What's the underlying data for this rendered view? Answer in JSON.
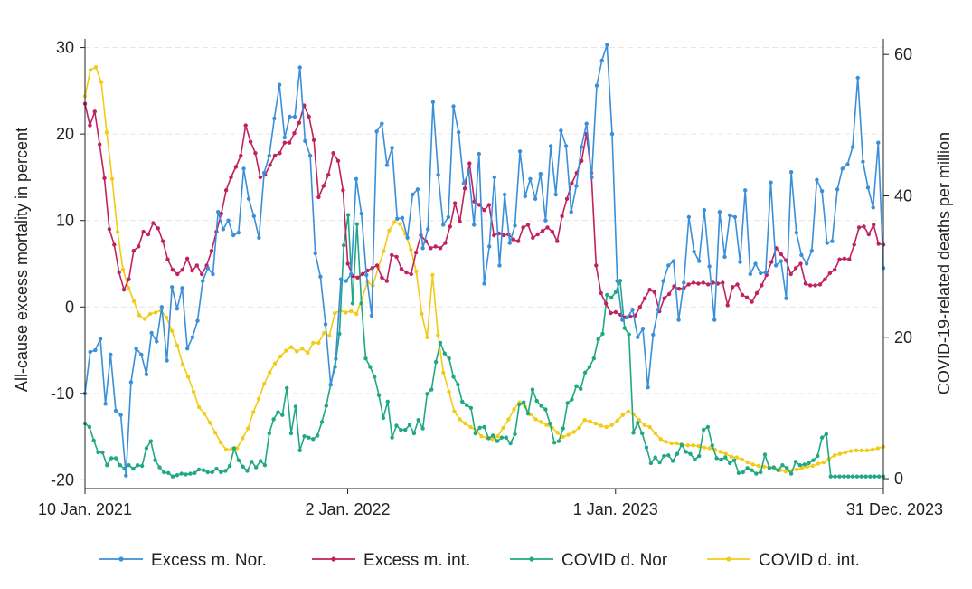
{
  "chart_data": {
    "type": "line",
    "title": "",
    "y_left_label": "All-cause excess mortality in percent",
    "y_right_label": "COVID-19-related deaths per million",
    "y_left_range": [
      -21,
      31
    ],
    "y_right_range": [
      -1.4,
      62.2
    ],
    "y_left_ticks": [
      30,
      20,
      10,
      0,
      -10,
      -20
    ],
    "y_right_ticks": [
      60,
      40,
      20,
      0
    ],
    "x_range": [
      0,
      155
    ],
    "x_ticks": [
      {
        "week": 0,
        "label": "10 Jan. 2021"
      },
      {
        "week": 51,
        "label": "2 Jan. 2022"
      },
      {
        "week": 103,
        "label": "1 Jan. 2023"
      },
      {
        "week": 155,
        "label": "31 Dec. 2023"
      }
    ],
    "grid": true,
    "legend_position": "bottom",
    "series": [
      {
        "name": "Excess m. Nor.",
        "axis": "left",
        "color": "#3a8fd9",
        "values": [
          -10,
          -5.2,
          -5,
          -3.7,
          -11.2,
          -5.5,
          -12,
          -12.5,
          -19.5,
          -8.7,
          -4.8,
          -5.5,
          -7.8,
          -3,
          -4,
          0,
          -6.2,
          2.3,
          -0.2,
          2.2,
          -4.8,
          -3.5,
          -1.6,
          3,
          4.5,
          3.8,
          11,
          9,
          10,
          8.3,
          8.6,
          16,
          12.5,
          10.5,
          8,
          15.5,
          17.5,
          21.8,
          25.7,
          19.6,
          22,
          22,
          27.7,
          19.2,
          17.5,
          6.2,
          3.5,
          -2,
          -9,
          -6,
          3.2,
          3,
          3.8,
          14.8,
          10.8,
          3.7,
          -1,
          20.3,
          21.2,
          16.4,
          18.4,
          10.2,
          10.3,
          8,
          13,
          13.6,
          6.8,
          9,
          23.7,
          15.3,
          9.5,
          10.4,
          23.2,
          20.2,
          14.3,
          15.6,
          9.5,
          17.7,
          2.7,
          7,
          15,
          4.8,
          13,
          7.4,
          9.4,
          18,
          12.8,
          14.8,
          12.5,
          15.4,
          10,
          18.6,
          13,
          20.4,
          18.6,
          11,
          14,
          18.5,
          21.2,
          15,
          25.6,
          28.5,
          30.3,
          20,
          3,
          -1.5,
          -1.2,
          -0.3,
          -3.5,
          -2.5,
          -9.3,
          -3.2,
          -0.3,
          3,
          4.8,
          5.3,
          -1.5,
          2.8,
          10.4,
          6.4,
          5.3,
          11.2,
          4.7,
          -1.5,
          11,
          5.8,
          10.6,
          10.4,
          5.2,
          13.5,
          3.8,
          5,
          3.9,
          4,
          14.4,
          4.8,
          5.3,
          1,
          15.6,
          8.6,
          6,
          5,
          6.5,
          14.7,
          13.4,
          7.4,
          7.6,
          13.6,
          16,
          16.5,
          18.5,
          26.5,
          16.8,
          13.8,
          11.5,
          19,
          4.5
        ]
      },
      {
        "name": "Excess m. int.",
        "axis": "left",
        "color": "#c0215f",
        "values": [
          23.5,
          21,
          22.6,
          18.8,
          14.9,
          9,
          7.2,
          4,
          2,
          3.2,
          6.5,
          7,
          8.7,
          8.4,
          9.7,
          9.1,
          7.6,
          5.5,
          4.3,
          3.8,
          4.3,
          5.6,
          4.2,
          4.8,
          3.8,
          4.8,
          6.5,
          8.7,
          10.8,
          13.5,
          15,
          16.2,
          17.5,
          21,
          19.1,
          17.8,
          15,
          15.3,
          16.4,
          17.5,
          17.8,
          19,
          19,
          20.1,
          21.3,
          23.3,
          22,
          19.3,
          12.7,
          14,
          15.3,
          17.8,
          16.9,
          13.5,
          5,
          3.6,
          3.4,
          3.8,
          4.2,
          4.5,
          4.8,
          3.4,
          3,
          6,
          5.8,
          4.4,
          4,
          3.8,
          6.3,
          8.3,
          7.6,
          6.8,
          7,
          6.8,
          7.4,
          9.3,
          12,
          9.9,
          13.7,
          16.6,
          12.2,
          11.8,
          11.2,
          11.8,
          8.3,
          8.5,
          8.3,
          8.4,
          7.8,
          7.6,
          9.2,
          9.5,
          8,
          8.4,
          8.8,
          9.2,
          8.7,
          7.6,
          10.5,
          12.5,
          14.3,
          15.5,
          16.9,
          20,
          15.5,
          4.8,
          1.6,
          0.4,
          -0.7,
          -0.6,
          -0.9,
          -1.2,
          -1.1,
          -1,
          0,
          1,
          2,
          1.7,
          -0.5,
          1,
          1.5,
          2.4,
          2.1,
          2.2,
          2.6,
          2.8,
          2.7,
          2.8,
          2.6,
          2.8,
          2.7,
          2.8,
          0.2,
          2.3,
          2.6,
          1.4,
          1.1,
          0.6,
          1.6,
          2.5,
          3.7,
          5.2,
          6.8,
          6.1,
          5.4,
          3.8,
          4.5,
          5,
          2.7,
          2.5,
          2.5,
          2.6,
          3.2,
          3.9,
          4.3,
          5.5,
          5.6,
          5.5,
          7.2,
          9.2,
          9.3,
          8.4,
          9.5,
          7.3,
          7.2
        ]
      },
      {
        "name": "COVID d. Nor",
        "axis": "right",
        "color": "#1fa883",
        "values": [
          7.8,
          7.3,
          5.4,
          3.7,
          3.7,
          1.9,
          2.9,
          2.9,
          1.9,
          1.4,
          1.9,
          1.4,
          1.9,
          1.8,
          4.3,
          5.3,
          2.6,
          1.6,
          0.9,
          0.8,
          0.3,
          0.5,
          0.7,
          0.6,
          0.7,
          0.8,
          1.3,
          1.2,
          0.9,
          0.9,
          1.4,
          0.9,
          1.1,
          1.8,
          4.3,
          2.6,
          1.7,
          1.1,
          2.4,
          1.6,
          2.5,
          1.9,
          6.4,
          8.4,
          9.4,
          9,
          12.8,
          6.4,
          10.2,
          4,
          6,
          5.8,
          5.6,
          6.1,
          8,
          10.3,
          13.3,
          15.8,
          20.5,
          33,
          37.3,
          24.8,
          36,
          24.8,
          17,
          15.8,
          14.4,
          11.8,
          8.6,
          10.9,
          5.8,
          7.5,
          6.9,
          6.9,
          7.6,
          6.4,
          8.3,
          7.1,
          12,
          12.6,
          16.5,
          19.2,
          17.7,
          17,
          14.4,
          13.3,
          10.9,
          10.4,
          10,
          6.4,
          7.2,
          7.3,
          5.7,
          6.1,
          5.3,
          5.8,
          5.8,
          5,
          6.3,
          10.5,
          10.8,
          9.2,
          12.6,
          11,
          10.3,
          9.8,
          7.8,
          5.1,
          5.3,
          7.1,
          10.7,
          11.2,
          13.1,
          12.7,
          15,
          15.8,
          17,
          19.7,
          20.5,
          26,
          25.6,
          26.4,
          28,
          21.3,
          20.4,
          6.5,
          7.9,
          6.4,
          4.4,
          2.2,
          3,
          2.3,
          3.2,
          3.3,
          2.5,
          3.5,
          4.8,
          3.8,
          3.5,
          2.7,
          3.2,
          6.9,
          7.3,
          4.7,
          2.9,
          2.7,
          3,
          2.2,
          2.6,
          0.8,
          0.9,
          1.5,
          1.2,
          0.7,
          0.9,
          3.4,
          1.5,
          1.6,
          1.2,
          1.9,
          1.5,
          0.7,
          2.4,
          1.9,
          2,
          2.2,
          2.6,
          3.2,
          5.8,
          6.3,
          0.3,
          0.3,
          0.3,
          0.3,
          0.3,
          0.3,
          0.3,
          0.3,
          0.3,
          0.3,
          0.3,
          0.3,
          0.3
        ]
      },
      {
        "name": "COVID d. int.",
        "axis": "right",
        "color": "#f2cb16",
        "values": [
          54.1,
          57.8,
          58.2,
          56.1,
          49,
          42.4,
          34.9,
          29.6,
          27,
          25.1,
          23.1,
          22.6,
          23.3,
          23.5,
          23.8,
          22.8,
          20.9,
          18.8,
          16.2,
          14.4,
          12.3,
          10.1,
          9.2,
          7.9,
          6.5,
          5.1,
          4.1,
          4.2,
          4.3,
          5.7,
          7.1,
          9.4,
          11.3,
          13.4,
          15,
          16.3,
          17.3,
          18.1,
          18.6,
          18,
          18.4,
          17.8,
          19.2,
          19.2,
          20.6,
          20.2,
          23.4,
          23.8,
          23.5,
          23.7,
          23.3,
          25.5,
          27.8,
          27.3,
          29.9,
          32.2,
          35.1,
          36.3,
          36,
          34.6,
          32.4,
          29.3,
          23.3,
          20,
          28.8,
          20.3,
          15,
          12.3,
          9.5,
          8.4,
          7.8,
          7.3,
          6.8,
          6,
          5.8,
          5.6,
          6,
          7.2,
          8.4,
          9.8,
          10.8,
          10.2,
          9.1,
          8.4,
          8,
          7.6,
          7.2,
          6.5,
          5.9,
          6.2,
          6.6,
          7.2,
          8.3,
          8.1,
          7.8,
          7.5,
          7.3,
          7.6,
          8.2,
          9,
          9.5,
          9.1,
          8.3,
          7.6,
          7.3,
          6.4,
          5.6,
          5.2,
          5,
          5,
          4.7,
          4.7,
          4.7,
          4.6,
          4.4,
          4.3,
          4.1,
          3.8,
          3.5,
          3.1,
          3,
          2.7,
          2.3,
          2,
          1.8,
          1.7,
          1.6,
          1.4,
          1.2,
          1,
          1.1,
          1.3,
          1.5,
          1.7,
          1.8,
          2.1,
          2.3,
          2.8,
          3.3,
          3.5,
          3.7,
          3.9,
          4,
          4,
          4,
          4.1,
          4.3,
          4.5
        ]
      }
    ]
  }
}
